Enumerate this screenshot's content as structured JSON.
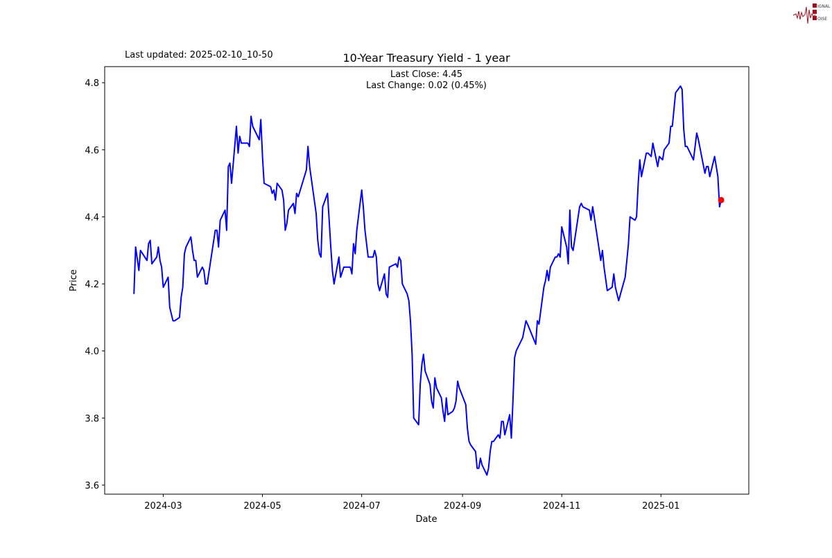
{
  "header": {
    "last_updated": "Last updated: 2025-02-10_10-50",
    "logo_text": "SIGNAL 2 NOISE"
  },
  "chart_data": {
    "type": "line",
    "title": "10-Year Treasury Yield - 1 year",
    "annotations": [
      "Last Close: 4.45",
      "Last Change: 0.02 (0.45%)"
    ],
    "xlabel": "Date",
    "ylabel": "Price",
    "xlim": [
      "2024-01-25",
      "2025-02-24"
    ],
    "ylim": [
      3.573,
      4.848
    ],
    "x_ticks": [
      "2024-03",
      "2024-05",
      "2024-07",
      "2024-09",
      "2024-11",
      "2025-01"
    ],
    "y_ticks": [
      "3.6",
      "3.8",
      "4.0",
      "4.2",
      "4.4",
      "4.6",
      "4.8"
    ],
    "grid": false,
    "colors": {
      "line": "#0000ff",
      "last_point": "#ff0000"
    },
    "last_point": {
      "date": "2025-02-07",
      "value": 4.45
    },
    "series": [
      {
        "points": [
          [
            "2024-02-12",
            4.17
          ],
          [
            "2024-02-13",
            4.31
          ],
          [
            "2024-02-15",
            4.24
          ],
          [
            "2024-02-16",
            4.3
          ],
          [
            "2024-02-20",
            4.27
          ],
          [
            "2024-02-21",
            4.32
          ],
          [
            "2024-02-22",
            4.33
          ],
          [
            "2024-02-23",
            4.26
          ],
          [
            "2024-02-26",
            4.28
          ],
          [
            "2024-02-27",
            4.31
          ],
          [
            "2024-02-28",
            4.27
          ],
          [
            "2024-02-29",
            4.25
          ],
          [
            "2024-03-01",
            4.19
          ],
          [
            "2024-03-04",
            4.22
          ],
          [
            "2024-03-05",
            4.13
          ],
          [
            "2024-03-07",
            4.09
          ],
          [
            "2024-03-08",
            4.09
          ],
          [
            "2024-03-11",
            4.1
          ],
          [
            "2024-03-12",
            4.16
          ],
          [
            "2024-03-13",
            4.19
          ],
          [
            "2024-03-14",
            4.29
          ],
          [
            "2024-03-15",
            4.31
          ],
          [
            "2024-03-18",
            4.34
          ],
          [
            "2024-03-19",
            4.3
          ],
          [
            "2024-03-20",
            4.27
          ],
          [
            "2024-03-21",
            4.27
          ],
          [
            "2024-03-22",
            4.22
          ],
          [
            "2024-03-25",
            4.25
          ],
          [
            "2024-03-26",
            4.24
          ],
          [
            "2024-03-27",
            4.2
          ],
          [
            "2024-03-28",
            4.2
          ],
          [
            "2024-04-02",
            4.36
          ],
          [
            "2024-04-03",
            4.36
          ],
          [
            "2024-04-04",
            4.31
          ],
          [
            "2024-04-05",
            4.39
          ],
          [
            "2024-04-08",
            4.42
          ],
          [
            "2024-04-09",
            4.36
          ],
          [
            "2024-04-10",
            4.55
          ],
          [
            "2024-04-11",
            4.56
          ],
          [
            "2024-04-12",
            4.5
          ],
          [
            "2024-04-15",
            4.67
          ],
          [
            "2024-04-16",
            4.59
          ],
          [
            "2024-04-17",
            4.64
          ],
          [
            "2024-04-18",
            4.62
          ],
          [
            "2024-04-22",
            4.62
          ],
          [
            "2024-04-23",
            4.61
          ],
          [
            "2024-04-24",
            4.7
          ],
          [
            "2024-04-25",
            4.67
          ],
          [
            "2024-04-29",
            4.63
          ],
          [
            "2024-04-30",
            4.69
          ],
          [
            "2024-05-01",
            4.58
          ],
          [
            "2024-05-02",
            4.5
          ],
          [
            "2024-05-06",
            4.49
          ],
          [
            "2024-05-07",
            4.47
          ],
          [
            "2024-05-08",
            4.48
          ],
          [
            "2024-05-09",
            4.45
          ],
          [
            "2024-05-10",
            4.5
          ],
          [
            "2024-05-13",
            4.48
          ],
          [
            "2024-05-14",
            4.45
          ],
          [
            "2024-05-15",
            4.36
          ],
          [
            "2024-05-16",
            4.38
          ],
          [
            "2024-05-17",
            4.42
          ],
          [
            "2024-05-20",
            4.44
          ],
          [
            "2024-05-21",
            4.41
          ],
          [
            "2024-05-22",
            4.47
          ],
          [
            "2024-05-23",
            4.46
          ],
          [
            "2024-05-28",
            4.54
          ],
          [
            "2024-05-29",
            4.61
          ],
          [
            "2024-05-30",
            4.55
          ],
          [
            "2024-06-03",
            4.41
          ],
          [
            "2024-06-04",
            4.33
          ],
          [
            "2024-06-05",
            4.29
          ],
          [
            "2024-06-06",
            4.28
          ],
          [
            "2024-06-07",
            4.43
          ],
          [
            "2024-06-10",
            4.47
          ],
          [
            "2024-06-12",
            4.31
          ],
          [
            "2024-06-13",
            4.24
          ],
          [
            "2024-06-14",
            4.2
          ],
          [
            "2024-06-17",
            4.28
          ],
          [
            "2024-06-18",
            4.22
          ],
          [
            "2024-06-20",
            4.25
          ],
          [
            "2024-06-24",
            4.25
          ],
          [
            "2024-06-25",
            4.23
          ],
          [
            "2024-06-26",
            4.32
          ],
          [
            "2024-06-27",
            4.29
          ],
          [
            "2024-06-28",
            4.36
          ],
          [
            "2024-07-01",
            4.48
          ],
          [
            "2024-07-02",
            4.43
          ],
          [
            "2024-07-03",
            4.36
          ],
          [
            "2024-07-05",
            4.28
          ],
          [
            "2024-07-08",
            4.28
          ],
          [
            "2024-07-09",
            4.3
          ],
          [
            "2024-07-10",
            4.28
          ],
          [
            "2024-07-11",
            4.2
          ],
          [
            "2024-07-12",
            4.18
          ],
          [
            "2024-07-15",
            4.23
          ],
          [
            "2024-07-16",
            4.17
          ],
          [
            "2024-07-17",
            4.16
          ],
          [
            "2024-07-18",
            4.25
          ],
          [
            "2024-07-22",
            4.26
          ],
          [
            "2024-07-23",
            4.25
          ],
          [
            "2024-07-24",
            4.28
          ],
          [
            "2024-07-25",
            4.27
          ],
          [
            "2024-07-26",
            4.2
          ],
          [
            "2024-07-29",
            4.17
          ],
          [
            "2024-07-30",
            4.15
          ],
          [
            "2024-07-31",
            4.09
          ],
          [
            "2024-08-01",
            3.99
          ],
          [
            "2024-08-02",
            3.8
          ],
          [
            "2024-08-05",
            3.78
          ],
          [
            "2024-08-06",
            3.9
          ],
          [
            "2024-08-07",
            3.96
          ],
          [
            "2024-08-08",
            3.99
          ],
          [
            "2024-08-09",
            3.94
          ],
          [
            "2024-08-12",
            3.9
          ],
          [
            "2024-08-13",
            3.85
          ],
          [
            "2024-08-14",
            3.83
          ],
          [
            "2024-08-15",
            3.92
          ],
          [
            "2024-08-16",
            3.89
          ],
          [
            "2024-08-19",
            3.86
          ],
          [
            "2024-08-20",
            3.82
          ],
          [
            "2024-08-21",
            3.79
          ],
          [
            "2024-08-22",
            3.86
          ],
          [
            "2024-08-23",
            3.81
          ],
          [
            "2024-08-26",
            3.82
          ],
          [
            "2024-08-27",
            3.83
          ],
          [
            "2024-08-28",
            3.85
          ],
          [
            "2024-08-29",
            3.91
          ],
          [
            "2024-08-30",
            3.89
          ],
          [
            "2024-09-03",
            3.84
          ],
          [
            "2024-09-04",
            3.77
          ],
          [
            "2024-09-05",
            3.73
          ],
          [
            "2024-09-06",
            3.72
          ],
          [
            "2024-09-09",
            3.7
          ],
          [
            "2024-09-10",
            3.65
          ],
          [
            "2024-09-11",
            3.65
          ],
          [
            "2024-09-12",
            3.68
          ],
          [
            "2024-09-13",
            3.66
          ],
          [
            "2024-09-16",
            3.63
          ],
          [
            "2024-09-17",
            3.65
          ],
          [
            "2024-09-18",
            3.7
          ],
          [
            "2024-09-19",
            3.73
          ],
          [
            "2024-09-20",
            3.73
          ],
          [
            "2024-09-23",
            3.75
          ],
          [
            "2024-09-24",
            3.74
          ],
          [
            "2024-09-25",
            3.79
          ],
          [
            "2024-09-26",
            3.79
          ],
          [
            "2024-09-27",
            3.75
          ],
          [
            "2024-09-30",
            3.81
          ],
          [
            "2024-10-01",
            3.74
          ],
          [
            "2024-10-02",
            3.85
          ],
          [
            "2024-10-03",
            3.98
          ],
          [
            "2024-10-04",
            4.0
          ],
          [
            "2024-10-07",
            4.03
          ],
          [
            "2024-10-08",
            4.04
          ],
          [
            "2024-10-10",
            4.09
          ],
          [
            "2024-10-11",
            4.08
          ],
          [
            "2024-10-16",
            4.02
          ],
          [
            "2024-10-17",
            4.09
          ],
          [
            "2024-10-18",
            4.08
          ],
          [
            "2024-10-21",
            4.19
          ],
          [
            "2024-10-22",
            4.21
          ],
          [
            "2024-10-23",
            4.24
          ],
          [
            "2024-10-24",
            4.21
          ],
          [
            "2024-10-25",
            4.25
          ],
          [
            "2024-10-28",
            4.28
          ],
          [
            "2024-10-29",
            4.28
          ],
          [
            "2024-10-30",
            4.29
          ],
          [
            "2024-10-31",
            4.28
          ],
          [
            "2024-11-01",
            4.37
          ],
          [
            "2024-11-04",
            4.31
          ],
          [
            "2024-11-05",
            4.26
          ],
          [
            "2024-11-06",
            4.42
          ],
          [
            "2024-11-07",
            4.31
          ],
          [
            "2024-11-08",
            4.3
          ],
          [
            "2024-11-12",
            4.43
          ],
          [
            "2024-11-13",
            4.44
          ],
          [
            "2024-11-14",
            4.43
          ],
          [
            "2024-11-18",
            4.42
          ],
          [
            "2024-11-19",
            4.39
          ],
          [
            "2024-11-20",
            4.43
          ],
          [
            "2024-11-21",
            4.4
          ],
          [
            "2024-11-25",
            4.27
          ],
          [
            "2024-11-26",
            4.3
          ],
          [
            "2024-11-27",
            4.25
          ],
          [
            "2024-11-29",
            4.18
          ],
          [
            "2024-12-02",
            4.19
          ],
          [
            "2024-12-03",
            4.23
          ],
          [
            "2024-12-04",
            4.19
          ],
          [
            "2024-12-06",
            4.15
          ],
          [
            "2024-12-10",
            4.22
          ],
          [
            "2024-12-11",
            4.27
          ],
          [
            "2024-12-12",
            4.32
          ],
          [
            "2024-12-13",
            4.4
          ],
          [
            "2024-12-16",
            4.39
          ],
          [
            "2024-12-17",
            4.4
          ],
          [
            "2024-12-18",
            4.5
          ],
          [
            "2024-12-19",
            4.57
          ],
          [
            "2024-12-20",
            4.52
          ],
          [
            "2024-12-23",
            4.59
          ],
          [
            "2024-12-24",
            4.59
          ],
          [
            "2024-12-26",
            4.58
          ],
          [
            "2024-12-27",
            4.62
          ],
          [
            "2024-12-30",
            4.55
          ],
          [
            "2024-12-31",
            4.58
          ],
          [
            "2025-01-02",
            4.57
          ],
          [
            "2025-01-03",
            4.6
          ],
          [
            "2025-01-06",
            4.62
          ],
          [
            "2025-01-07",
            4.67
          ],
          [
            "2025-01-08",
            4.67
          ],
          [
            "2025-01-10",
            4.77
          ],
          [
            "2025-01-13",
            4.79
          ],
          [
            "2025-01-14",
            4.78
          ],
          [
            "2025-01-15",
            4.66
          ],
          [
            "2025-01-16",
            4.61
          ],
          [
            "2025-01-17",
            4.61
          ],
          [
            "2025-01-21",
            4.57
          ],
          [
            "2025-01-23",
            4.65
          ],
          [
            "2025-01-24",
            4.63
          ],
          [
            "2025-01-28",
            4.53
          ],
          [
            "2025-01-29",
            4.55
          ],
          [
            "2025-01-30",
            4.55
          ],
          [
            "2025-01-31",
            4.52
          ],
          [
            "2025-02-03",
            4.58
          ],
          [
            "2025-02-04",
            4.55
          ],
          [
            "2025-02-05",
            4.52
          ],
          [
            "2025-02-06",
            4.43
          ],
          [
            "2025-02-07",
            4.45
          ]
        ]
      }
    ]
  }
}
